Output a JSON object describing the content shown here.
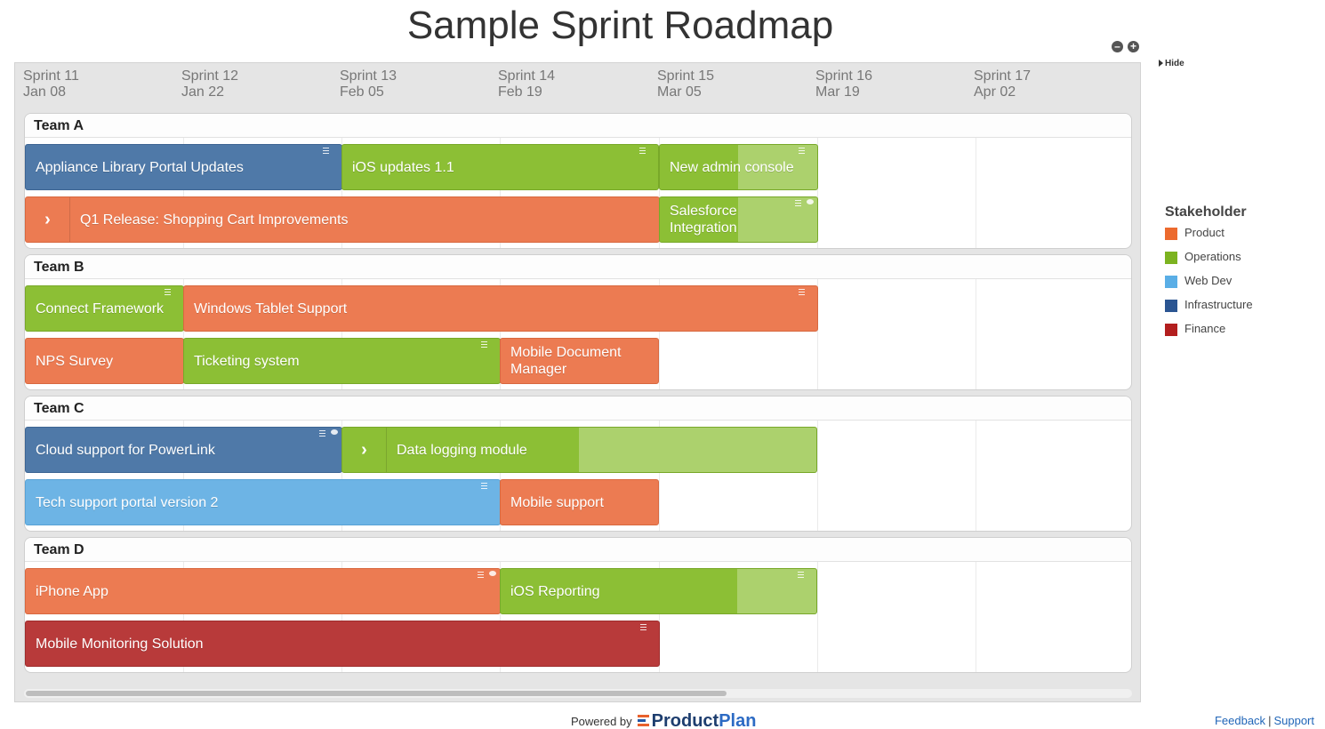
{
  "title": "Sample Sprint Roadmap",
  "hide_label": "Hide",
  "sprints": [
    {
      "name": "Sprint 11",
      "date": "Jan 08"
    },
    {
      "name": "Sprint 12",
      "date": "Jan 22"
    },
    {
      "name": "Sprint 13",
      "date": "Feb 05"
    },
    {
      "name": "Sprint 14",
      "date": "Feb 19"
    },
    {
      "name": "Sprint 15",
      "date": "Mar 05"
    },
    {
      "name": "Sprint 16",
      "date": "Mar 19"
    },
    {
      "name": "Sprint 17",
      "date": "Apr 02"
    }
  ],
  "lanes": [
    {
      "name": "Team A",
      "bars": [
        {
          "label": "Appliance Library Portal Updates",
          "stakeholder": "Infrastructure",
          "start_sprint": "Sprint 11",
          "duration_sprints": 2,
          "row": 1,
          "menu": true
        },
        {
          "label": "iOS updates 1.1",
          "stakeholder": "Operations",
          "start_sprint": "Sprint 13",
          "duration_sprints": 2,
          "row": 1,
          "menu": true
        },
        {
          "label": "New admin console",
          "stakeholder": "Operations",
          "start_sprint": "Sprint 15",
          "duration_sprints": 1,
          "row": 1,
          "menu": true
        },
        {
          "label": "Q1 Release: Shopping Cart Improvements",
          "stakeholder": "Product",
          "start_sprint": "Sprint 11",
          "duration_sprints": 4,
          "row": 2,
          "expandable": true
        },
        {
          "label": "Salesforce Integration",
          "stakeholder": "Operations",
          "start_sprint": "Sprint 15",
          "duration_sprints": 1,
          "row": 2,
          "menu": true,
          "comment": true
        }
      ]
    },
    {
      "name": "Team B",
      "bars": [
        {
          "label": "Connect Framework",
          "stakeholder": "Operations",
          "start_sprint": "Sprint 11",
          "duration_sprints": 1,
          "row": 1,
          "menu": true
        },
        {
          "label": "Windows Tablet Support",
          "stakeholder": "Product",
          "start_sprint": "Sprint 12",
          "duration_sprints": 4,
          "row": 1,
          "menu": true
        },
        {
          "label": "NPS Survey",
          "stakeholder": "Product",
          "start_sprint": "Sprint 11",
          "duration_sprints": 1,
          "row": 2
        },
        {
          "label": "Ticketing system",
          "stakeholder": "Operations",
          "start_sprint": "Sprint 12",
          "duration_sprints": 2,
          "row": 2,
          "menu": true
        },
        {
          "label": "Mobile Document Manager",
          "stakeholder": "Product",
          "start_sprint": "Sprint 14",
          "duration_sprints": 1,
          "row": 2
        }
      ]
    },
    {
      "name": "Team C",
      "bars": [
        {
          "label": "Cloud support for PowerLink",
          "stakeholder": "Infrastructure",
          "start_sprint": "Sprint 11",
          "duration_sprints": 2,
          "row": 1,
          "menu": true,
          "comment": true
        },
        {
          "label": "Data logging module",
          "stakeholder": "Operations",
          "start_sprint": "Sprint 13",
          "duration_sprints": 3,
          "row": 1,
          "expandable": true
        },
        {
          "label": "Tech support portal version 2",
          "stakeholder": "Web Dev",
          "start_sprint": "Sprint 11",
          "duration_sprints": 3,
          "row": 2,
          "menu": true
        },
        {
          "label": "Mobile support",
          "stakeholder": "Product",
          "start_sprint": "Sprint 14",
          "duration_sprints": 1,
          "row": 2
        }
      ]
    },
    {
      "name": "Team D",
      "bars": [
        {
          "label": "iPhone App",
          "stakeholder": "Product",
          "start_sprint": "Sprint 11",
          "duration_sprints": 3,
          "row": 1,
          "menu": true,
          "comment": true
        },
        {
          "label": "iOS Reporting",
          "stakeholder": "Operations",
          "start_sprint": "Sprint 14",
          "duration_sprints": 2,
          "row": 1,
          "menu": true
        },
        {
          "label": "Mobile Monitoring Solution",
          "stakeholder": "Finance",
          "start_sprint": "Sprint 11",
          "duration_sprints": 4,
          "row": 2,
          "menu": true
        }
      ]
    }
  ],
  "legend": {
    "title": "Stakeholder",
    "items": [
      {
        "label": "Product",
        "color": "#ec6a2e"
      },
      {
        "label": "Operations",
        "color": "#7cb320"
      },
      {
        "label": "Web Dev",
        "color": "#5aaee6"
      },
      {
        "label": "Infrastructure",
        "color": "#2b5592"
      },
      {
        "label": "Finance",
        "color": "#b31f1f"
      }
    ]
  },
  "footer": {
    "powered_by": "Powered by",
    "brand_product": "Product",
    "brand_plan": "Plan",
    "feedback": "Feedback",
    "separator": "|",
    "support": "Support"
  }
}
